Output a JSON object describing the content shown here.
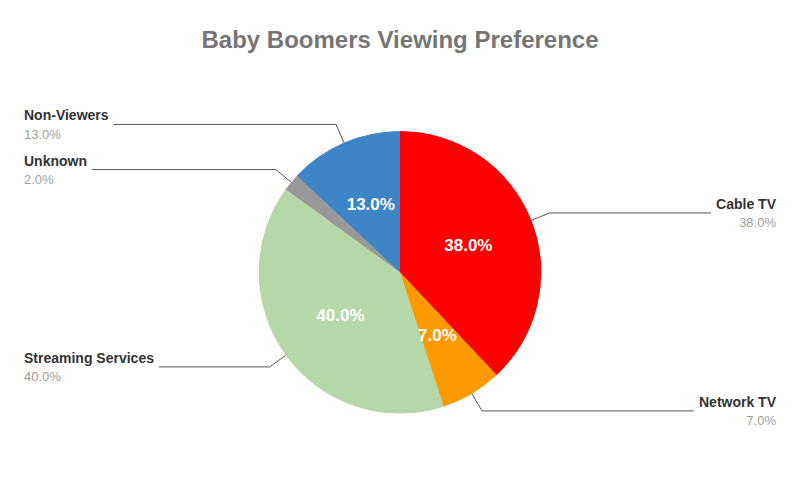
{
  "chart_data": {
    "type": "pie",
    "title": "Baby Boomers Viewing Preference",
    "categories": [
      "Cable TV",
      "Network TV",
      "Streaming Services",
      "Unknown",
      "Non-Viewers"
    ],
    "values": [
      38,
      7,
      40,
      2,
      13
    ],
    "value_labels": [
      "38.0%",
      "7.0%",
      "40.0%",
      "2.0%",
      "13.0%"
    ],
    "colors": [
      "#ff0000",
      "#ff9900",
      "#b6d7a8",
      "#999999",
      "#3d85c6"
    ],
    "data_labels": true
  }
}
